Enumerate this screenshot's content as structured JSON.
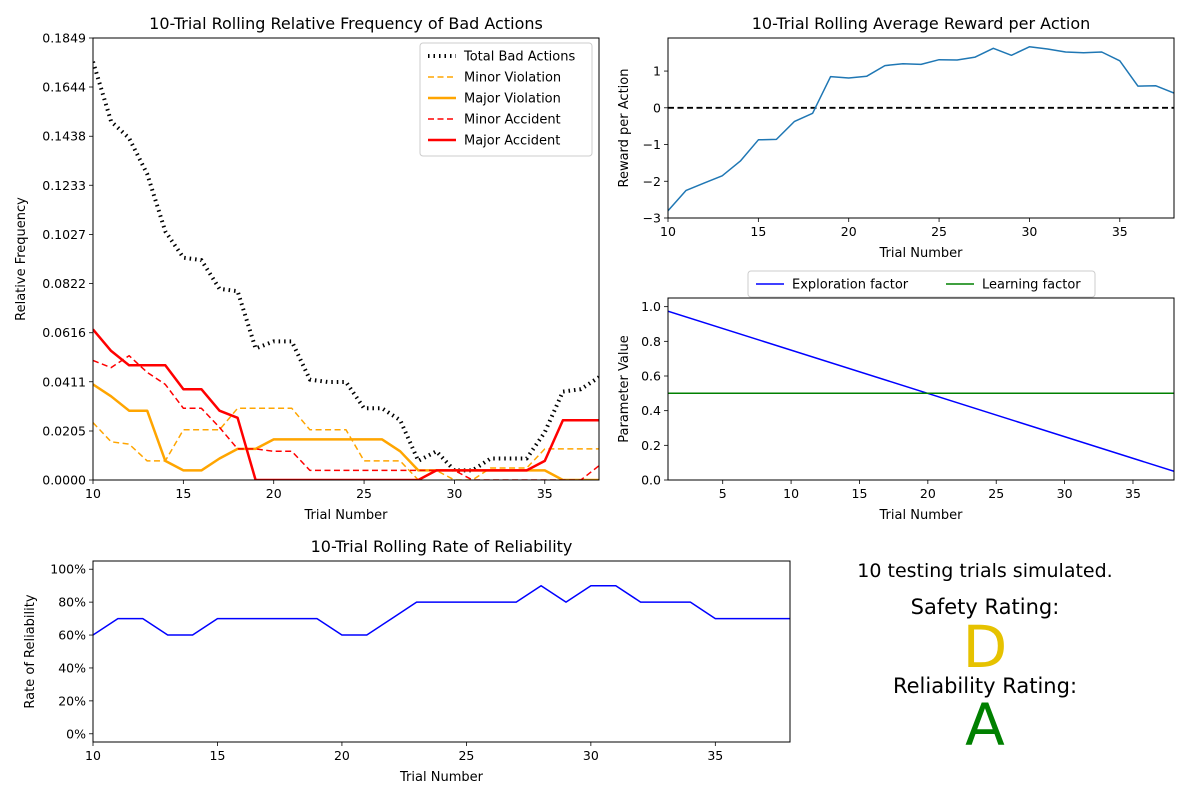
{
  "chart_data": [
    {
      "type": "line",
      "title": "10-Trial Rolling Relative Frequency of Bad Actions",
      "xlabel": "Trial Number",
      "ylabel": "Relative Frequency",
      "xlim": [
        10,
        38
      ],
      "ylim": [
        0,
        0.1849
      ],
      "xticks": [
        10,
        15,
        20,
        25,
        30,
        35
      ],
      "yticks": [
        0.0,
        0.0205,
        0.0411,
        0.0616,
        0.0822,
        0.1027,
        0.1233,
        0.1438,
        0.1644,
        0.1849
      ],
      "ytick_labels": [
        "0.0000",
        "0.0205",
        "0.0411",
        "0.0616",
        "0.0822",
        "0.1027",
        "0.1233",
        "0.1438",
        "0.1644",
        "0.1849"
      ],
      "legend": "top-right",
      "x": [
        10,
        11,
        12,
        13,
        14,
        15,
        16,
        17,
        18,
        19,
        20,
        21,
        22,
        23,
        24,
        25,
        26,
        27,
        28,
        29,
        30,
        31,
        32,
        33,
        34,
        35,
        36,
        37,
        38
      ],
      "series": [
        {
          "name": "Total Bad Actions",
          "color": "#000000",
          "style": "dotted",
          "width": 4,
          "values": [
            0.175,
            0.15,
            0.143,
            0.128,
            0.104,
            0.093,
            0.092,
            0.08,
            0.079,
            0.055,
            0.058,
            0.058,
            0.042,
            0.041,
            0.041,
            0.03,
            0.03,
            0.025,
            0.008,
            0.012,
            0.004,
            0.004,
            0.009,
            0.009,
            0.009,
            0.02,
            0.037,
            0.038,
            0.043
          ]
        },
        {
          "name": "Minor Violation",
          "color": "#ffa500",
          "style": "dashed",
          "width": 1.5,
          "values": [
            0.024,
            0.016,
            0.015,
            0.008,
            0.008,
            0.021,
            0.021,
            0.021,
            0.03,
            0.03,
            0.03,
            0.03,
            0.021,
            0.021,
            0.021,
            0.008,
            0.008,
            0.008,
            0.0,
            0.004,
            0.0,
            0.0,
            0.005,
            0.005,
            0.005,
            0.013,
            0.013,
            0.013,
            0.013
          ]
        },
        {
          "name": "Major Violation",
          "color": "#ffa500",
          "style": "solid",
          "width": 2.5,
          "values": [
            0.04,
            0.035,
            0.029,
            0.029,
            0.008,
            0.004,
            0.004,
            0.009,
            0.013,
            0.013,
            0.017,
            0.017,
            0.017,
            0.017,
            0.017,
            0.017,
            0.017,
            0.012,
            0.004,
            0.004,
            0.004,
            0.004,
            0.004,
            0.004,
            0.004,
            0.004,
            0.0,
            0.0,
            0.0
          ]
        },
        {
          "name": "Minor Accident",
          "color": "#ff0000",
          "style": "dashed",
          "width": 1.5,
          "values": [
            0.05,
            0.047,
            0.052,
            0.045,
            0.04,
            0.03,
            0.03,
            0.022,
            0.013,
            0.013,
            0.012,
            0.012,
            0.004,
            0.004,
            0.004,
            0.004,
            0.004,
            0.004,
            0.004,
            0.004,
            0.004,
            0.0,
            0.0,
            0.0,
            0.0,
            0.0,
            0.0,
            0.0,
            0.006
          ]
        },
        {
          "name": "Major Accident",
          "color": "#ff0000",
          "style": "solid",
          "width": 2.5,
          "values": [
            0.063,
            0.054,
            0.048,
            0.048,
            0.048,
            0.038,
            0.038,
            0.029,
            0.026,
            0.0,
            0.0,
            0.0,
            0.0,
            0.0,
            0.0,
            0.0,
            0.0,
            0.0,
            0.0,
            0.004,
            0.004,
            0.004,
            0.004,
            0.004,
            0.004,
            0.008,
            0.025,
            0.025,
            0.025
          ]
        }
      ]
    },
    {
      "type": "line",
      "title": "10-Trial Rolling Average Reward per Action",
      "xlabel": "Trial Number",
      "ylabel": "Reward per Action",
      "xlim": [
        10,
        38
      ],
      "ylim": [
        -3,
        1.9
      ],
      "xticks": [
        10,
        15,
        20,
        25,
        30,
        35
      ],
      "yticks": [
        -3,
        -2,
        -1,
        0,
        1
      ],
      "ytick_labels": [
        "−3",
        "−2",
        "−1",
        "0",
        "1"
      ],
      "reference_line": {
        "y": 0,
        "color": "#000000",
        "style": "dashed"
      },
      "x": [
        10,
        11,
        12,
        13,
        14,
        15,
        16,
        17,
        18,
        19,
        20,
        21,
        22,
        23,
        24,
        25,
        26,
        27,
        28,
        29,
        30,
        31,
        32,
        33,
        34,
        35,
        36,
        37,
        38
      ],
      "series": [
        {
          "color": "#1f77b4",
          "style": "solid",
          "width": 1.5,
          "values": [
            -2.8,
            -2.25,
            -2.05,
            -1.85,
            -1.45,
            -0.87,
            -0.86,
            -0.37,
            -0.15,
            0.85,
            0.81,
            0.86,
            1.15,
            1.2,
            1.18,
            1.31,
            1.3,
            1.38,
            1.62,
            1.43,
            1.66,
            1.6,
            1.52,
            1.5,
            1.52,
            1.28,
            0.59,
            0.6,
            0.4
          ]
        }
      ]
    },
    {
      "type": "line",
      "xlabel": "Trial Number",
      "ylabel": "Parameter Value",
      "xlim": [
        1,
        38
      ],
      "ylim": [
        0,
        1.05
      ],
      "xticks": [
        5,
        10,
        15,
        20,
        25,
        30,
        35
      ],
      "yticks": [
        0.0,
        0.2,
        0.4,
        0.6,
        0.8,
        1.0
      ],
      "ytick_labels": [
        "0.0",
        "0.2",
        "0.4",
        "0.6",
        "0.8",
        "1.0"
      ],
      "legend": "above",
      "x": [
        1,
        38
      ],
      "series": [
        {
          "name": "Exploration factor",
          "color": "#0000ff",
          "style": "solid",
          "width": 1.5,
          "values": [
            0.974,
            0.05
          ]
        },
        {
          "name": "Learning factor",
          "color": "#008000",
          "style": "solid",
          "width": 1.5,
          "values": [
            0.5,
            0.5
          ]
        }
      ]
    },
    {
      "type": "line",
      "title": "10-Trial Rolling Rate of Reliability",
      "xlabel": "Trial Number",
      "ylabel": "Rate of Reliability",
      "xlim": [
        10,
        38
      ],
      "ylim": [
        -5,
        105
      ],
      "xticks": [
        10,
        15,
        20,
        25,
        30,
        35
      ],
      "yticks": [
        0,
        20,
        40,
        60,
        80,
        100
      ],
      "ytick_labels": [
        "0%",
        "20%",
        "40%",
        "60%",
        "80%",
        "100%"
      ],
      "x": [
        10,
        11,
        12,
        13,
        14,
        15,
        16,
        17,
        18,
        19,
        20,
        21,
        22,
        23,
        24,
        25,
        26,
        27,
        28,
        29,
        30,
        31,
        32,
        33,
        34,
        35,
        36,
        37,
        38
      ],
      "series": [
        {
          "color": "#0000ff",
          "style": "solid",
          "width": 1.5,
          "values": [
            60,
            70,
            70,
            60,
            60,
            70,
            70,
            70,
            70,
            70,
            60,
            60,
            70,
            80,
            80,
            80,
            80,
            80,
            90,
            80,
            90,
            90,
            80,
            80,
            80,
            70,
            70,
            70,
            70
          ]
        }
      ]
    }
  ],
  "summary": {
    "trials_text": "10 testing trials simulated.",
    "safety_label": "Safety Rating:",
    "safety_grade": "D",
    "safety_color": "#e6c200",
    "reliability_label": "Reliability Rating:",
    "reliability_grade": "A",
    "reliability_color": "#008000"
  }
}
